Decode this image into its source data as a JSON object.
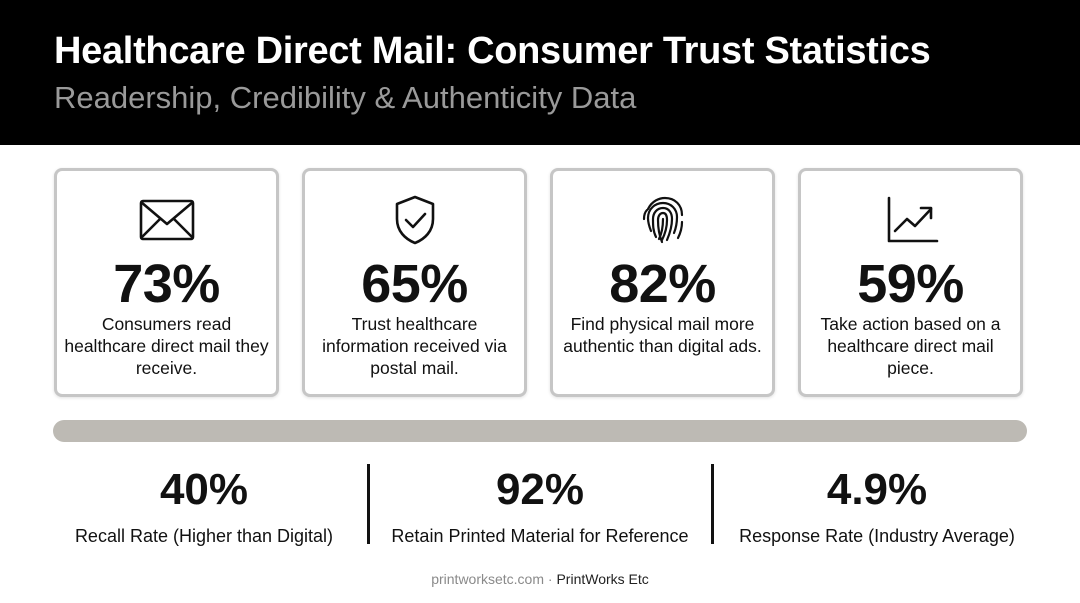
{
  "header": {
    "title": "Healthcare Direct Mail: Consumer Trust Statistics",
    "subtitle": "Readership, Credibility & Authenticity Data"
  },
  "cards": [
    {
      "icon": "envelope-icon",
      "value": "73%",
      "description": "Consumers read healthcare direct mail they receive."
    },
    {
      "icon": "shield-check-icon",
      "value": "65%",
      "description": "Trust healthcare information received via postal mail."
    },
    {
      "icon": "fingerprint-icon",
      "value": "82%",
      "description": "Find physical mail more authentic than digital ads."
    },
    {
      "icon": "trending-chart-icon",
      "value": "59%",
      "description": "Take action based on a healthcare direct mail piece."
    }
  ],
  "stats": [
    {
      "value": "40%",
      "label": "Recall Rate (Higher than Digital)"
    },
    {
      "value": "92%",
      "label": "Retain Printed Material for Reference"
    },
    {
      "value": "4.9%",
      "label": "Response Rate (Industry Average)"
    }
  ],
  "footer": {
    "site": "printworksetc.com",
    "separator": "·",
    "brand": "PrintWorks Etc"
  },
  "colors": {
    "header_bg": "#000000",
    "subtitle": "#9a9a9a",
    "card_border": "#c6c6c6",
    "divider_bar": "#bdbab4"
  }
}
